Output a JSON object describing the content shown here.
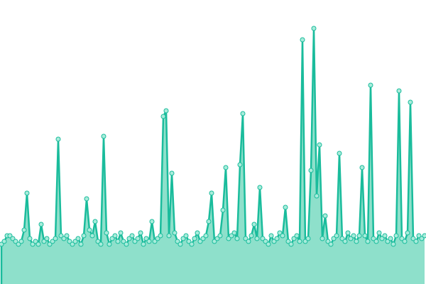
{
  "chart_data": {
    "type": "area",
    "color": "#1abc9c",
    "fill": "#8ee0cb",
    "point_fill": "#a8ecdb",
    "ylim": [
      0,
      100
    ],
    "values": [
      14,
      15,
      17,
      17,
      16,
      15,
      14,
      15,
      19,
      32,
      16,
      14,
      15,
      14,
      21,
      15,
      16,
      14,
      15,
      16,
      51,
      17,
      16,
      17,
      15,
      14,
      15,
      16,
      14,
      17,
      30,
      19,
      17,
      22,
      15,
      14,
      52,
      18,
      14,
      16,
      17,
      15,
      18,
      15,
      14,
      16,
      17,
      15,
      16,
      18,
      14,
      16,
      15,
      22,
      15,
      16,
      17,
      59,
      61,
      17,
      39,
      18,
      15,
      14,
      16,
      17,
      15,
      14,
      16,
      18,
      15,
      16,
      17,
      22,
      32,
      15,
      16,
      17,
      26,
      41,
      16,
      17,
      18,
      16,
      42,
      60,
      16,
      15,
      17,
      21,
      16,
      34,
      16,
      15,
      14,
      17,
      15,
      16,
      18,
      17,
      27,
      15,
      14,
      16,
      17,
      15,
      86,
      15,
      16,
      40,
      90,
      31,
      49,
      16,
      24,
      15,
      14,
      16,
      17,
      46,
      16,
      15,
      18,
      16,
      17,
      15,
      17,
      41,
      17,
      15,
      70,
      16,
      15,
      18,
      16,
      17,
      15,
      16,
      14,
      17,
      68,
      16,
      15,
      18,
      64,
      16,
      15,
      17,
      16,
      17
    ]
  }
}
